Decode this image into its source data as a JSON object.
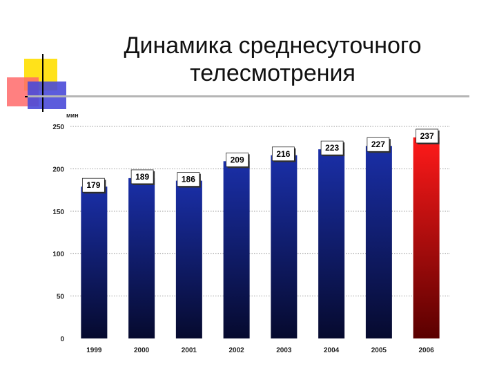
{
  "title": {
    "line1": "Динамика среднесуточного",
    "line2": "телесмотрения"
  },
  "chart_data": {
    "type": "bar",
    "title": "Динамика среднесуточного телесмотрения",
    "ylabel": "мин",
    "xlabel": "",
    "categories": [
      "1999",
      "2000",
      "2001",
      "2002",
      "2003",
      "2004",
      "2005",
      "2006"
    ],
    "values": [
      179,
      189,
      186,
      209,
      216,
      223,
      227,
      237
    ],
    "ylim": [
      0,
      250
    ],
    "yticks": [
      0,
      50,
      100,
      150,
      200,
      250
    ],
    "grid": true,
    "colors": {
      "bar_top": "#1a2fa8",
      "bar_bottom": "#060a2e",
      "highlight_top": "#ff1a1a",
      "highlight_bottom": "#5a0000",
      "highlight_index": 7
    }
  }
}
